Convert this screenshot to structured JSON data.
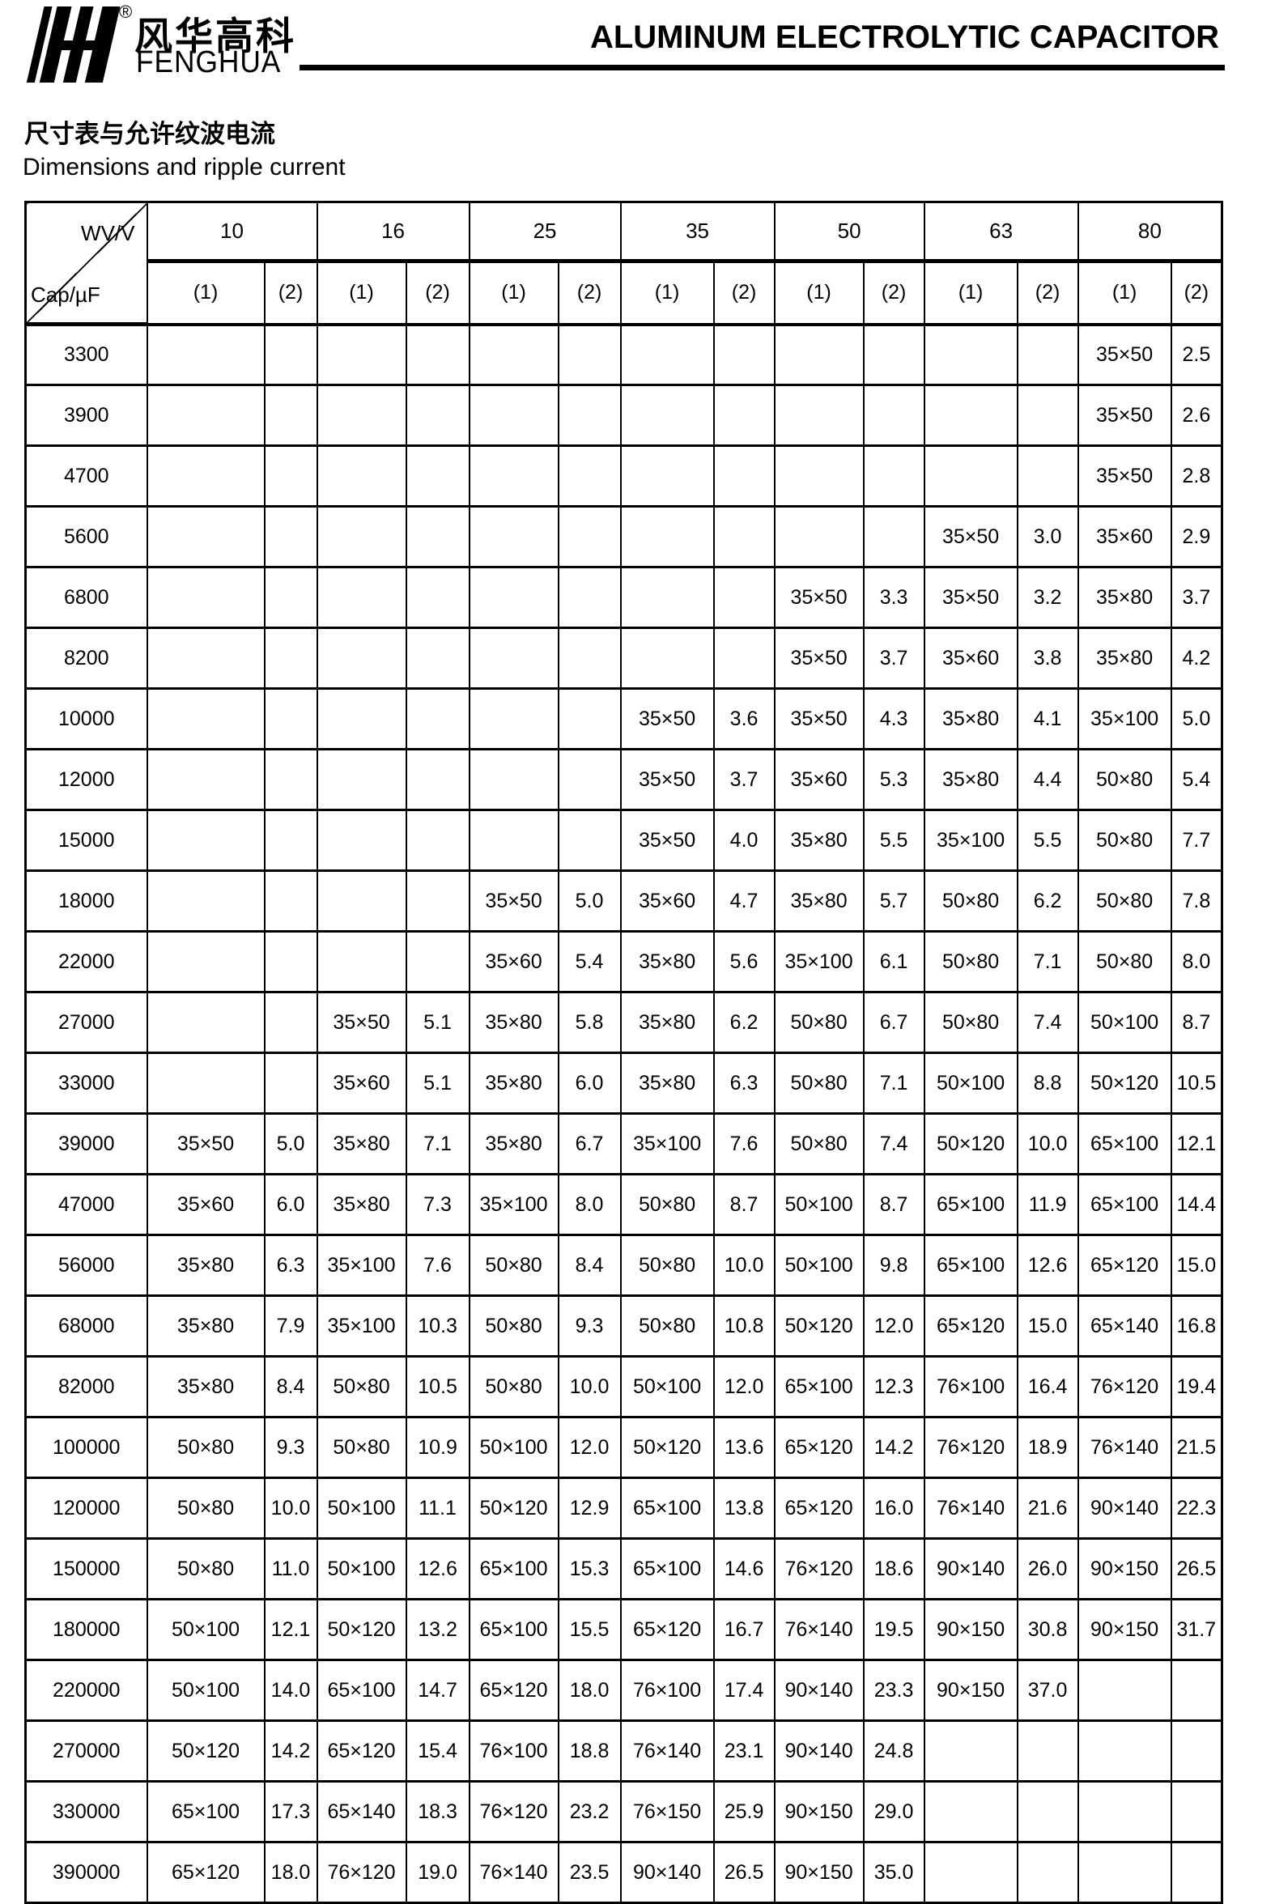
{
  "header": {
    "logo_chinese": "风华高科",
    "logo_latin": "FENGHUA",
    "registered_mark": "®",
    "title": "ALUMINUM ELECTROLYTIC CAPACITOR"
  },
  "section": {
    "heading_zh": "尺寸表与允许纹波电流",
    "heading_en": "Dimensions and ripple current"
  },
  "table": {
    "corner": {
      "top_right": "WV/V",
      "bottom_left": "Cap/µF"
    },
    "voltages": [
      "10",
      "16",
      "25",
      "35",
      "50",
      "63",
      "80"
    ],
    "subheaders": [
      "(1)",
      "(2)"
    ],
    "rows": [
      {
        "cap": "3300",
        "cells": [
          "",
          "",
          "",
          "",
          "",
          "",
          "",
          "",
          "",
          "",
          "",
          "",
          "35×50",
          "2.5"
        ]
      },
      {
        "cap": "3900",
        "cells": [
          "",
          "",
          "",
          "",
          "",
          "",
          "",
          "",
          "",
          "",
          "",
          "",
          "35×50",
          "2.6"
        ]
      },
      {
        "cap": "4700",
        "cells": [
          "",
          "",
          "",
          "",
          "",
          "",
          "",
          "",
          "",
          "",
          "",
          "",
          "35×50",
          "2.8"
        ]
      },
      {
        "cap": "5600",
        "cells": [
          "",
          "",
          "",
          "",
          "",
          "",
          "",
          "",
          "",
          "",
          "35×50",
          "3.0",
          "35×60",
          "2.9"
        ]
      },
      {
        "cap": "6800",
        "cells": [
          "",
          "",
          "",
          "",
          "",
          "",
          "",
          "",
          "35×50",
          "3.3",
          "35×50",
          "3.2",
          "35×80",
          "3.7"
        ]
      },
      {
        "cap": "8200",
        "cells": [
          "",
          "",
          "",
          "",
          "",
          "",
          "",
          "",
          "35×50",
          "3.7",
          "35×60",
          "3.8",
          "35×80",
          "4.2"
        ]
      },
      {
        "cap": "10000",
        "cells": [
          "",
          "",
          "",
          "",
          "",
          "",
          "35×50",
          "3.6",
          "35×50",
          "4.3",
          "35×80",
          "4.1",
          "35×100",
          "5.0"
        ]
      },
      {
        "cap": "12000",
        "cells": [
          "",
          "",
          "",
          "",
          "",
          "",
          "35×50",
          "3.7",
          "35×60",
          "5.3",
          "35×80",
          "4.4",
          "50×80",
          "5.4"
        ]
      },
      {
        "cap": "15000",
        "cells": [
          "",
          "",
          "",
          "",
          "",
          "",
          "35×50",
          "4.0",
          "35×80",
          "5.5",
          "35×100",
          "5.5",
          "50×80",
          "7.7"
        ]
      },
      {
        "cap": "18000",
        "cells": [
          "",
          "",
          "",
          "",
          "35×50",
          "5.0",
          "35×60",
          "4.7",
          "35×80",
          "5.7",
          "50×80",
          "6.2",
          "50×80",
          "7.8"
        ]
      },
      {
        "cap": "22000",
        "cells": [
          "",
          "",
          "",
          "",
          "35×60",
          "5.4",
          "35×80",
          "5.6",
          "35×100",
          "6.1",
          "50×80",
          "7.1",
          "50×80",
          "8.0"
        ]
      },
      {
        "cap": "27000",
        "cells": [
          "",
          "",
          "35×50",
          "5.1",
          "35×80",
          "5.8",
          "35×80",
          "6.2",
          "50×80",
          "6.7",
          "50×80",
          "7.4",
          "50×100",
          "8.7"
        ]
      },
      {
        "cap": "33000",
        "cells": [
          "",
          "",
          "35×60",
          "5.1",
          "35×80",
          "6.0",
          "35×80",
          "6.3",
          "50×80",
          "7.1",
          "50×100",
          "8.8",
          "50×120",
          "10.5"
        ]
      },
      {
        "cap": "39000",
        "cells": [
          "35×50",
          "5.0",
          "35×80",
          "7.1",
          "35×80",
          "6.7",
          "35×100",
          "7.6",
          "50×80",
          "7.4",
          "50×120",
          "10.0",
          "65×100",
          "12.1"
        ]
      },
      {
        "cap": "47000",
        "cells": [
          "35×60",
          "6.0",
          "35×80",
          "7.3",
          "35×100",
          "8.0",
          "50×80",
          "8.7",
          "50×100",
          "8.7",
          "65×100",
          "11.9",
          "65×100",
          "14.4"
        ]
      },
      {
        "cap": "56000",
        "cells": [
          "35×80",
          "6.3",
          "35×100",
          "7.6",
          "50×80",
          "8.4",
          "50×80",
          "10.0",
          "50×100",
          "9.8",
          "65×100",
          "12.6",
          "65×120",
          "15.0"
        ]
      },
      {
        "cap": "68000",
        "cells": [
          "35×80",
          "7.9",
          "35×100",
          "10.3",
          "50×80",
          "9.3",
          "50×80",
          "10.8",
          "50×120",
          "12.0",
          "65×120",
          "15.0",
          "65×140",
          "16.8"
        ]
      },
      {
        "cap": "82000",
        "cells": [
          "35×80",
          "8.4",
          "50×80",
          "10.5",
          "50×80",
          "10.0",
          "50×100",
          "12.0",
          "65×100",
          "12.3",
          "76×100",
          "16.4",
          "76×120",
          "19.4"
        ]
      },
      {
        "cap": "100000",
        "cells": [
          "50×80",
          "9.3",
          "50×80",
          "10.9",
          "50×100",
          "12.0",
          "50×120",
          "13.6",
          "65×120",
          "14.2",
          "76×120",
          "18.9",
          "76×140",
          "21.5"
        ]
      },
      {
        "cap": "120000",
        "cells": [
          "50×80",
          "10.0",
          "50×100",
          "11.1",
          "50×120",
          "12.9",
          "65×100",
          "13.8",
          "65×120",
          "16.0",
          "76×140",
          "21.6",
          "90×140",
          "22.3"
        ]
      },
      {
        "cap": "150000",
        "cells": [
          "50×80",
          "11.0",
          "50×100",
          "12.6",
          "65×100",
          "15.3",
          "65×100",
          "14.6",
          "76×120",
          "18.6",
          "90×140",
          "26.0",
          "90×150",
          "26.5"
        ]
      },
      {
        "cap": "180000",
        "cells": [
          "50×100",
          "12.1",
          "50×120",
          "13.2",
          "65×100",
          "15.5",
          "65×120",
          "16.7",
          "76×140",
          "19.5",
          "90×150",
          "30.8",
          "90×150",
          "31.7"
        ]
      },
      {
        "cap": "220000",
        "cells": [
          "50×100",
          "14.0",
          "65×100",
          "14.7",
          "65×120",
          "18.0",
          "76×100",
          "17.4",
          "90×140",
          "23.3",
          "90×150",
          "37.0",
          "",
          ""
        ]
      },
      {
        "cap": "270000",
        "cells": [
          "50×120",
          "14.2",
          "65×120",
          "15.4",
          "76×100",
          "18.8",
          "76×140",
          "23.1",
          "90×140",
          "24.8",
          "",
          "",
          "",
          ""
        ]
      },
      {
        "cap": "330000",
        "cells": [
          "65×100",
          "17.3",
          "65×140",
          "18.3",
          "76×120",
          "23.2",
          "76×150",
          "25.9",
          "90×150",
          "29.0",
          "",
          "",
          "",
          ""
        ]
      },
      {
        "cap": "390000",
        "cells": [
          "65×120",
          "18.0",
          "76×120",
          "19.0",
          "76×140",
          "23.5",
          "90×140",
          "26.5",
          "90×150",
          "35.0",
          "",
          "",
          "",
          ""
        ]
      }
    ]
  }
}
